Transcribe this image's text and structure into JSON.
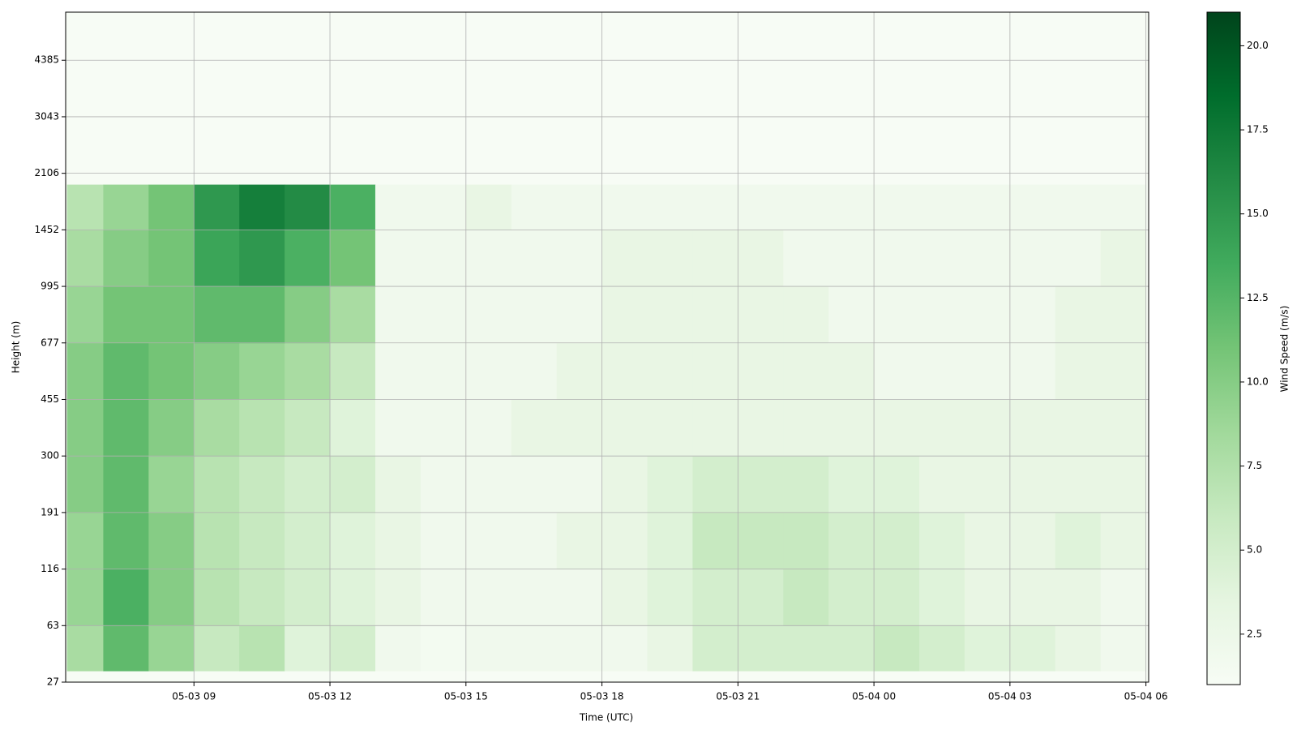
{
  "chart_data": {
    "type": "heatmap",
    "xlabel": "Time (UTC)",
    "ylabel": "Height (m)",
    "colorbar_label": "Wind Speed (m/s)",
    "xlim": [
      6.17,
      30.06
    ],
    "xticks": [
      {
        "value": 9,
        "label": "05-03 09"
      },
      {
        "value": 12,
        "label": "05-03 12"
      },
      {
        "value": 15,
        "label": "05-03 15"
      },
      {
        "value": 18,
        "label": "05-03 18"
      },
      {
        "value": 21,
        "label": "05-03 21"
      },
      {
        "value": 24,
        "label": "05-04 00"
      },
      {
        "value": 27,
        "label": "05-04 03"
      },
      {
        "value": 30,
        "label": "05-04 06"
      }
    ],
    "ylim": [
      0,
      11.85
    ],
    "yticks": [
      {
        "value": 0,
        "label": "27"
      },
      {
        "value": 1,
        "label": "63"
      },
      {
        "value": 2,
        "label": "116"
      },
      {
        "value": 3,
        "label": "191"
      },
      {
        "value": 4,
        "label": "300"
      },
      {
        "value": 5,
        "label": "455"
      },
      {
        "value": 6,
        "label": "677"
      },
      {
        "value": 7,
        "label": "995"
      },
      {
        "value": 8,
        "label": "1452"
      },
      {
        "value": 9,
        "label": "2106"
      },
      {
        "value": 10,
        "label": "3043"
      },
      {
        "value": 11,
        "label": "4385"
      }
    ],
    "x_bins": [
      6.2,
      7,
      8,
      9,
      10,
      11,
      12,
      13,
      14,
      15,
      16,
      17,
      18,
      19,
      20,
      21,
      22,
      23,
      24,
      25,
      26,
      27,
      28,
      29,
      30
    ],
    "y_bins": [
      0.2,
      1,
      2,
      3,
      4,
      5,
      6,
      7,
      8,
      8.8
    ],
    "values": [
      [
        8,
        12,
        9,
        6,
        7,
        4,
        5,
        2,
        1.5,
        2,
        2,
        2,
        2,
        3,
        5,
        5,
        5,
        5,
        6,
        5,
        4,
        4,
        3,
        2
      ],
      [
        9,
        13,
        10,
        7,
        6,
        5,
        4,
        3,
        2,
        2,
        2,
        2,
        3,
        4,
        5,
        5,
        6,
        5,
        5,
        4,
        3,
        3,
        3,
        2
      ],
      [
        9,
        12,
        10,
        7,
        6,
        5,
        4,
        3,
        2,
        2,
        2,
        3,
        3,
        4,
        6,
        6,
        6,
        5,
        5,
        4,
        3,
        3,
        4,
        3
      ],
      [
        10,
        12,
        9,
        7,
        6,
        5,
        5,
        3,
        2,
        2,
        2,
        2,
        3,
        4,
        5,
        5,
        5,
        4,
        4,
        3,
        3,
        3,
        3,
        3
      ],
      [
        10,
        12,
        10,
        8,
        7,
        6,
        4,
        2,
        2,
        2,
        3,
        3,
        3,
        3,
        3,
        3,
        3,
        3,
        3,
        3,
        3,
        3,
        3,
        3
      ],
      [
        10,
        12,
        11,
        10,
        9,
        8,
        6,
        2,
        2,
        2,
        2,
        3,
        3,
        3,
        3,
        3,
        3,
        3,
        2,
        2,
        2,
        2,
        3,
        3
      ],
      [
        9,
        11,
        11,
        12,
        12,
        10,
        8,
        2,
        2,
        2,
        2,
        2,
        3,
        3,
        3,
        3,
        3,
        2,
        2,
        2,
        2,
        2,
        3,
        3
      ],
      [
        8,
        10,
        11,
        14,
        15,
        13,
        11,
        2,
        2,
        2,
        2,
        2,
        3,
        3,
        3,
        3,
        2,
        2,
        2,
        2,
        2,
        2,
        2,
        3
      ],
      [
        7,
        9,
        11,
        15,
        17,
        16,
        13,
        2,
        2,
        3,
        2,
        2,
        2,
        2,
        2,
        2,
        2,
        2,
        2,
        2,
        2,
        2,
        2,
        2
      ]
    ],
    "clim": [
      1.0,
      21.0
    ],
    "cticks": [
      2.5,
      {
        "value": 5,
        "label": "5.0"
      },
      7.5,
      {
        "value": 10,
        "label": "10.0"
      },
      12.5,
      {
        "value": 15,
        "label": "15.0"
      },
      17.5,
      {
        "value": 20,
        "label": "20.0"
      }
    ],
    "colormap": [
      "#f7fcf5",
      "#e5f5e0",
      "#c7e9c0",
      "#a1d99b",
      "#74c476",
      "#41ab5d",
      "#238b45",
      "#006d2c",
      "#00441b"
    ],
    "grid": true
  }
}
